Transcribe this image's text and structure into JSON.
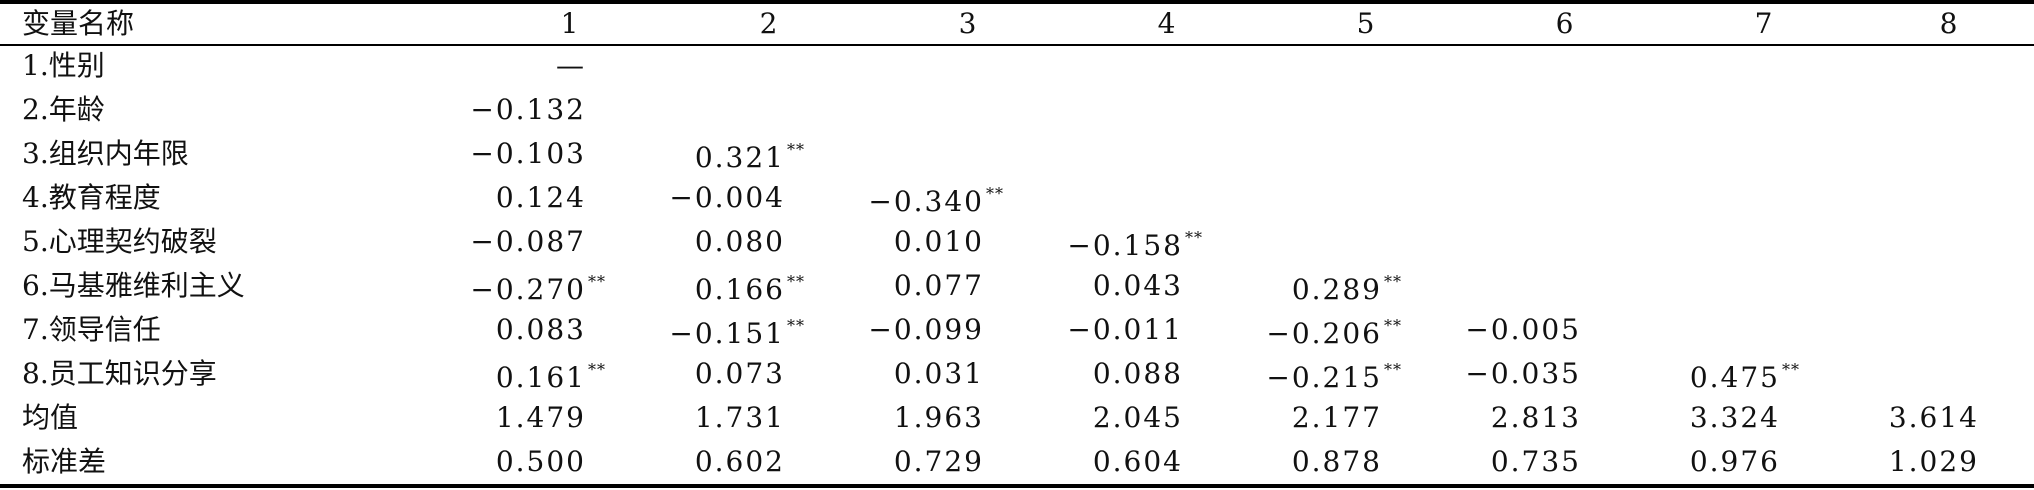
{
  "table": {
    "header": [
      "变量名称",
      "1",
      "2",
      "3",
      "4",
      "5",
      "6",
      "7",
      "8"
    ],
    "rows": [
      {
        "label": "1.性别",
        "cells": [
          {
            "v": "—",
            "sig": ""
          }
        ]
      },
      {
        "label": "2.年龄",
        "cells": [
          {
            "v": "−0.132",
            "sig": ""
          }
        ]
      },
      {
        "label": "3.组织内年限",
        "cells": [
          {
            "v": "−0.103",
            "sig": ""
          },
          {
            "v": "0.321",
            "sig": "**"
          }
        ]
      },
      {
        "label": "4.教育程度",
        "cells": [
          {
            "v": "0.124",
            "sig": ""
          },
          {
            "v": "−0.004",
            "sig": ""
          },
          {
            "v": "−0.340",
            "sig": "**"
          }
        ]
      },
      {
        "label": "5.心理契约破裂",
        "cells": [
          {
            "v": "−0.087",
            "sig": ""
          },
          {
            "v": "0.080",
            "sig": ""
          },
          {
            "v": "0.010",
            "sig": ""
          },
          {
            "v": "−0.158",
            "sig": "**"
          }
        ]
      },
      {
        "label": "6.马基雅维利主义",
        "cells": [
          {
            "v": "−0.270",
            "sig": "**"
          },
          {
            "v": "0.166",
            "sig": "**"
          },
          {
            "v": "0.077",
            "sig": ""
          },
          {
            "v": "0.043",
            "sig": ""
          },
          {
            "v": "0.289",
            "sig": "**"
          }
        ]
      },
      {
        "label": "7.领导信任",
        "cells": [
          {
            "v": "0.083",
            "sig": ""
          },
          {
            "v": "−0.151",
            "sig": "**"
          },
          {
            "v": "−0.099",
            "sig": ""
          },
          {
            "v": "−0.011",
            "sig": ""
          },
          {
            "v": "−0.206",
            "sig": "**"
          },
          {
            "v": "−0.005",
            "sig": ""
          }
        ]
      },
      {
        "label": "8.员工知识分享",
        "cells": [
          {
            "v": "0.161",
            "sig": "**"
          },
          {
            "v": "0.073",
            "sig": ""
          },
          {
            "v": "0.031",
            "sig": ""
          },
          {
            "v": "0.088",
            "sig": ""
          },
          {
            "v": "−0.215",
            "sig": "**"
          },
          {
            "v": "−0.035",
            "sig": ""
          },
          {
            "v": "0.475",
            "sig": "**"
          }
        ]
      },
      {
        "label": "均值",
        "cells": [
          {
            "v": "1.479",
            "sig": ""
          },
          {
            "v": "1.731",
            "sig": ""
          },
          {
            "v": "1.963",
            "sig": ""
          },
          {
            "v": "2.045",
            "sig": ""
          },
          {
            "v": "2.177",
            "sig": ""
          },
          {
            "v": "2.813",
            "sig": ""
          },
          {
            "v": "3.324",
            "sig": ""
          },
          {
            "v": "3.614",
            "sig": ""
          }
        ]
      },
      {
        "label": "标准差",
        "cells": [
          {
            "v": "0.500",
            "sig": ""
          },
          {
            "v": "0.602",
            "sig": ""
          },
          {
            "v": "0.729",
            "sig": ""
          },
          {
            "v": "0.604",
            "sig": ""
          },
          {
            "v": "0.878",
            "sig": ""
          },
          {
            "v": "0.735",
            "sig": ""
          },
          {
            "v": "0.976",
            "sig": ""
          },
          {
            "v": "1.029",
            "sig": ""
          }
        ]
      }
    ]
  }
}
